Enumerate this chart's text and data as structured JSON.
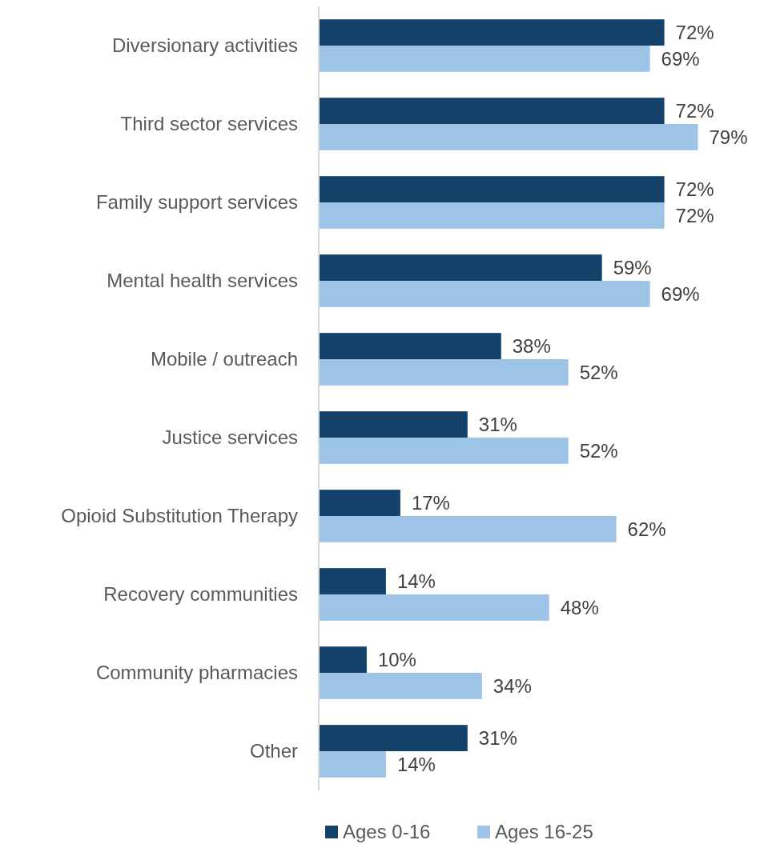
{
  "chart_data": {
    "type": "bar",
    "orientation": "horizontal",
    "categories": [
      "Diversionary activities",
      "Third sector services",
      "Family support services",
      "Mental health services",
      "Mobile / outreach",
      "Justice services",
      "Opioid Substitution Therapy",
      "Recovery communities",
      "Community pharmacies",
      "Other"
    ],
    "series": [
      {
        "name": "Ages 0-16",
        "color": "#15426b",
        "values": [
          72,
          72,
          72,
          59,
          38,
          31,
          17,
          14,
          10,
          31
        ],
        "value_labels": [
          "72%",
          "72%",
          "72%",
          "59%",
          "38%",
          "31%",
          "17%",
          "14%",
          "10%",
          "31%"
        ]
      },
      {
        "name": "Ages 16-25",
        "color": "#9dc3e6",
        "values": [
          69,
          79,
          72,
          69,
          52,
          52,
          62,
          48,
          34,
          14
        ],
        "value_labels": [
          "69%",
          "79%",
          "72%",
          "69%",
          "52%",
          "52%",
          "62%",
          "48%",
          "34%",
          "14%"
        ]
      }
    ],
    "legend": "bottom"
  }
}
